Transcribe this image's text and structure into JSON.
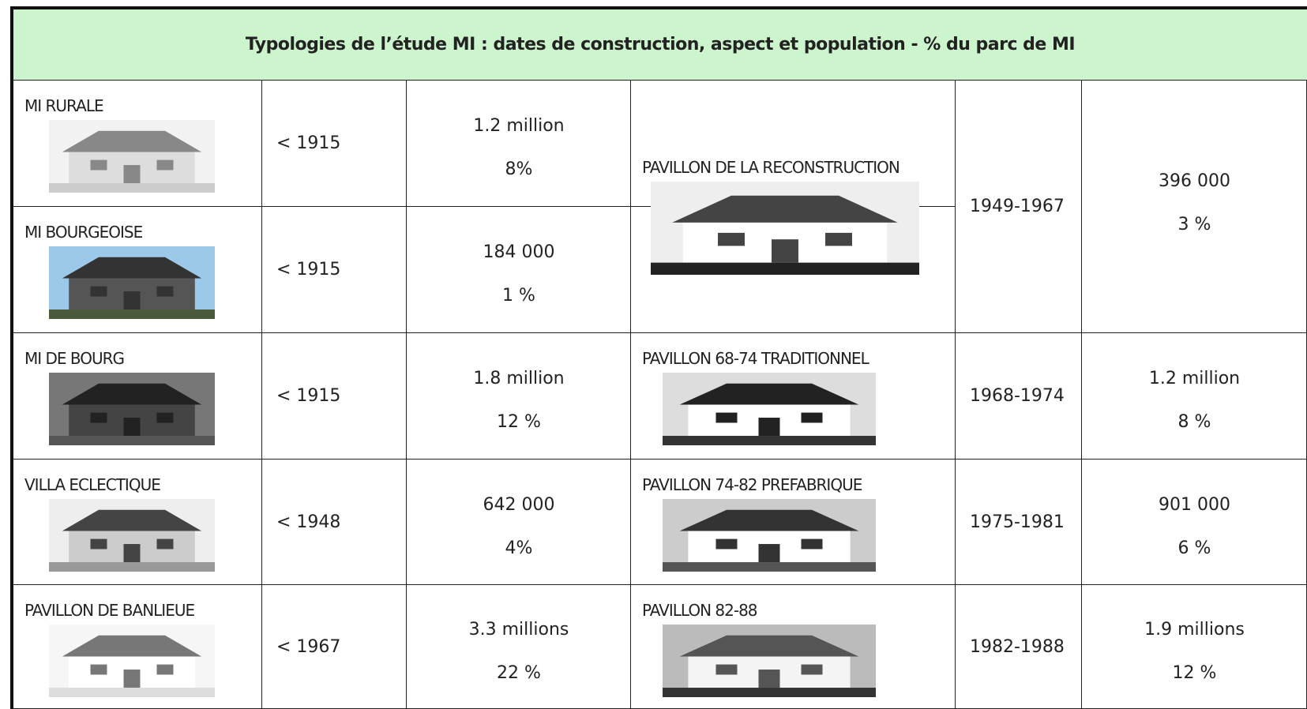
{
  "title": "Typologies de l’étude MI : dates de construction, aspect et population - % du parc de MI",
  "left": [
    {
      "name": "MI RURALE",
      "date": "< 1915",
      "count": "1.2 million",
      "share": "8%"
    },
    {
      "name": "MI BOURGEOISE",
      "date": "< 1915",
      "count": "184 000",
      "share": "1 %"
    },
    {
      "name": "MI DE BOURG",
      "date": "< 1915",
      "count": "1.8 million",
      "share": "12 %"
    },
    {
      "name": "VILLA ECLECTIQUE",
      "date": "< 1948",
      "count": "642 000",
      "share": "4%"
    },
    {
      "name": "PAVILLON DE BANLIEUE",
      "date": "< 1967",
      "count": "3.3 millions",
      "share": "22 %"
    }
  ],
  "right": [
    {
      "name": "PAVILLON DE LA RECONSTRUCTION",
      "date": "1949-1967",
      "count": "396 000",
      "share": "3 %"
    },
    {
      "name": "PAVILLON 68-74 TRADITIONNEL",
      "date": "1968-1974",
      "count": "1.2 million",
      "share": "8 %"
    },
    {
      "name": "PAVILLON 74-82 PREFABRIQUE",
      "date": "1975-1981",
      "count": "901 000",
      "share": "6 %"
    },
    {
      "name": "PAVILLON 82-88",
      "date": "1982-1988",
      "count": "1.9 millions",
      "share": "12 %"
    }
  ]
}
